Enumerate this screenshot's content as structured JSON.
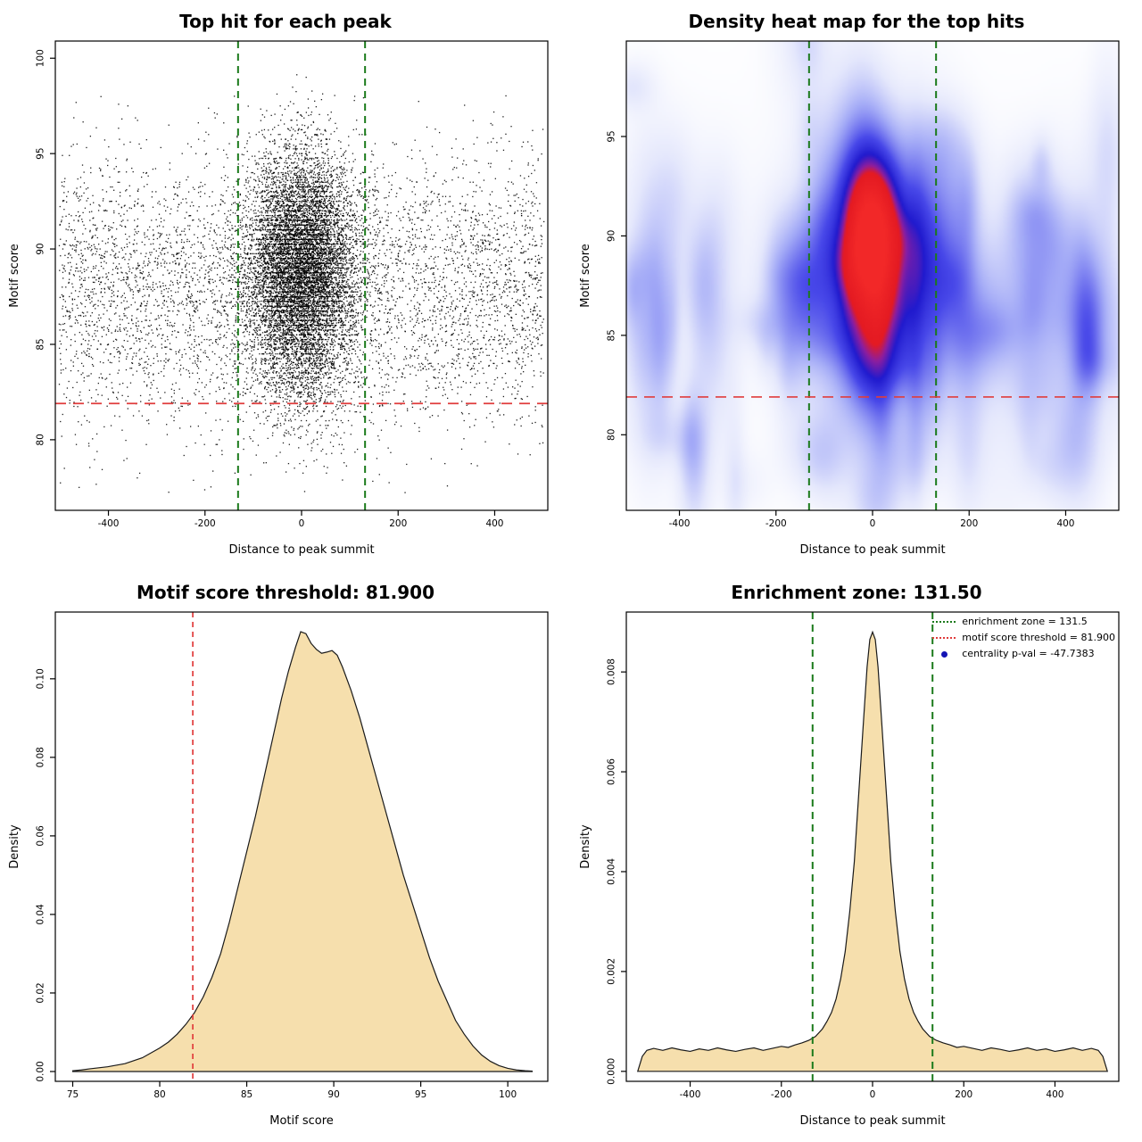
{
  "page": {
    "background": "#ffffff"
  },
  "chart_data": [
    {
      "id": "top-hits-scatter",
      "type": "scatter",
      "title": "Top hit for each peak",
      "xlabel": "Distance to peak summit",
      "ylabel": "Motif score",
      "xlim": [
        -510,
        510
      ],
      "ylim": [
        76.3,
        100.9
      ],
      "xticks": [
        -400,
        -200,
        0,
        200,
        400
      ],
      "xtick_labels": [
        "-400",
        "-200",
        "0",
        "200",
        "400"
      ],
      "yticks": [
        80,
        85,
        90,
        95,
        100
      ],
      "ytick_labels": [
        "80",
        "85",
        "90",
        "95",
        "100"
      ],
      "point_color": "#000000",
      "zone_lines_x": [
        -131.5,
        131.5
      ],
      "zone_line_color": "#1b7a1b",
      "threshold_y": 81.9,
      "threshold_color": "#e03c3c",
      "points_model": {
        "seed": 42,
        "n_center": 9800,
        "center_x_sd": 56,
        "center_y_mean": 89.3,
        "center_y_sd": 2.9,
        "center_low_tail_frac": 0.1,
        "center_low_tail_mean": 84.6,
        "center_low_tail_sd": 2.4,
        "n_background": 5200,
        "background_x_range": [
          -502,
          502
        ],
        "background_y_mean": 87.9,
        "background_y_sd": 3.6,
        "y_clip": [
          77.2,
          100.5
        ],
        "background_y_max": 98.2
      }
    },
    {
      "id": "top-hits-heatmap",
      "type": "heatmap",
      "title": "Density heat map for the top hits",
      "xlabel": "Distance to peak summit",
      "ylabel": "Motif score",
      "xlim": [
        -510,
        510
      ],
      "ylim": [
        76.2,
        99.8
      ],
      "xticks": [
        -400,
        -200,
        0,
        200,
        400
      ],
      "xtick_labels": [
        "-400",
        "-200",
        "0",
        "200",
        "400"
      ],
      "yticks": [
        80,
        85,
        90,
        95
      ],
      "ytick_labels": [
        "80",
        "85",
        "90",
        "95"
      ],
      "zone_lines_x": [
        -131.5,
        131.5
      ],
      "zone_line_color": "#1b7a1b",
      "threshold_y": 81.9,
      "threshold_color": "#e03c3c",
      "colors": {
        "low": "#ffffff",
        "mid": "#3c3ce6",
        "high": "#e61e28"
      },
      "density_model": {
        "seed": 7,
        "components": [
          {
            "amp": 1.3,
            "x0": 0,
            "sx": 30,
            "y0": 89.9,
            "sy": 2.1
          },
          {
            "amp": 0.75,
            "x0": 0,
            "sx": 60,
            "y0": 89.6,
            "sy": 3.3
          },
          {
            "amp": 0.25,
            "x0": 0,
            "sx": 95,
            "y0": 88.8,
            "sy": 4.6
          }
        ],
        "haze": {
          "base_amp": 0.05,
          "band_y": 88.3,
          "band_sy": 6,
          "blob_count": 130,
          "blob_amp": [
            0.04,
            0.15
          ],
          "blob_sx": [
            12,
            45
          ],
          "blob_sy": [
            0.8,
            3.0
          ],
          "tall_frac": 0.18,
          "tall_sy": [
            3,
            7
          ]
        }
      }
    },
    {
      "id": "motif-score-density",
      "type": "area",
      "title": "Motif score threshold: 81.900",
      "xlabel": "Motif score",
      "ylabel": "Density",
      "xlim": [
        74,
        102.3
      ],
      "ylim": [
        -0.0025,
        0.117
      ],
      "xticks": [
        75,
        80,
        85,
        90,
        95,
        100
      ],
      "xtick_labels": [
        "75",
        "80",
        "85",
        "90",
        "95",
        "100"
      ],
      "yticks": [
        0,
        0.02,
        0.04,
        0.06,
        0.08,
        0.1
      ],
      "ytick_labels": [
        "0.00",
        "0.02",
        "0.04",
        "0.06",
        "0.08",
        "0.10"
      ],
      "fill_color": "#f6dfad",
      "line_color": "#1a1a1a",
      "threshold_x": 81.9,
      "threshold_color": "#e03c3c",
      "curve": {
        "x": [
          75,
          75.5,
          76,
          77,
          78,
          79,
          80,
          80.5,
          81,
          81.5,
          82,
          82.5,
          83,
          83.5,
          84,
          84.5,
          85,
          85.5,
          86,
          86.5,
          87,
          87.4,
          87.8,
          88.1,
          88.4,
          88.7,
          89,
          89.3,
          89.6,
          89.9,
          90.2,
          90.5,
          91,
          91.5,
          92,
          92.5,
          93,
          93.5,
          94,
          94.5,
          95,
          95.5,
          96,
          96.5,
          97,
          97.5,
          98,
          98.5,
          99,
          99.5,
          100,
          100.5,
          101,
          101.4
        ],
        "y": [
          0.0002,
          0.0004,
          0.0007,
          0.0012,
          0.002,
          0.0035,
          0.006,
          0.0075,
          0.0095,
          0.012,
          0.015,
          0.019,
          0.024,
          0.03,
          0.038,
          0.047,
          0.056,
          0.065,
          0.075,
          0.085,
          0.095,
          0.102,
          0.108,
          0.112,
          0.1115,
          0.109,
          0.1075,
          0.1065,
          0.1068,
          0.1072,
          0.106,
          0.103,
          0.097,
          0.09,
          0.082,
          0.074,
          0.066,
          0.058,
          0.05,
          0.043,
          0.036,
          0.029,
          0.023,
          0.018,
          0.013,
          0.0095,
          0.0065,
          0.0042,
          0.0026,
          0.0015,
          0.0008,
          0.0004,
          0.0002,
          0.0001
        ]
      }
    },
    {
      "id": "summit-distance-density",
      "type": "area",
      "title": "Enrichment zone: 131.50",
      "xlabel": "Distance to peak summit",
      "ylabel": "Density",
      "xlim": [
        -540,
        540
      ],
      "ylim": [
        -0.0002,
        0.0092
      ],
      "xticks": [
        -400,
        -200,
        0,
        200,
        400
      ],
      "xtick_labels": [
        "-400",
        "-200",
        "0",
        "200",
        "400"
      ],
      "yticks": [
        0,
        0.002,
        0.004,
        0.006,
        0.008
      ],
      "ytick_labels": [
        "0.000",
        "0.002",
        "0.004",
        "0.006",
        "0.008"
      ],
      "fill_color": "#f6dfad",
      "line_color": "#1a1a1a",
      "zone_lines_x": [
        -131.5,
        131.5
      ],
      "zone_line_color": "#1b7a1b",
      "curve": {
        "x": [
          -515,
          -510,
          -505,
          -495,
          -480,
          -460,
          -440,
          -420,
          -400,
          -380,
          -360,
          -340,
          -320,
          -300,
          -280,
          -260,
          -240,
          -220,
          -200,
          -185,
          -170,
          -155,
          -140,
          -125,
          -110,
          -100,
          -90,
          -80,
          -70,
          -60,
          -50,
          -40,
          -30,
          -20,
          -12,
          -6,
          0,
          6,
          12,
          20,
          30,
          40,
          50,
          60,
          70,
          80,
          90,
          100,
          110,
          125,
          140,
          155,
          170,
          185,
          200,
          220,
          240,
          260,
          280,
          300,
          320,
          340,
          360,
          380,
          400,
          420,
          440,
          460,
          480,
          495,
          505,
          510,
          515
        ],
        "y": [
          0,
          0.00015,
          0.0003,
          0.00042,
          0.00046,
          0.00042,
          0.00047,
          0.00043,
          0.0004,
          0.00045,
          0.00042,
          0.00047,
          0.00043,
          0.0004,
          0.00044,
          0.00047,
          0.00042,
          0.00046,
          0.0005,
          0.00048,
          0.00053,
          0.00057,
          0.00062,
          0.0007,
          0.00085,
          0.001,
          0.00118,
          0.00145,
          0.00185,
          0.0024,
          0.0032,
          0.0042,
          0.0056,
          0.007,
          0.0081,
          0.00865,
          0.0088,
          0.00865,
          0.0081,
          0.007,
          0.0056,
          0.0042,
          0.0032,
          0.0024,
          0.00185,
          0.00145,
          0.00118,
          0.001,
          0.00085,
          0.0007,
          0.00062,
          0.00057,
          0.00053,
          0.00048,
          0.0005,
          0.00046,
          0.00042,
          0.00047,
          0.00044,
          0.0004,
          0.00043,
          0.00047,
          0.00042,
          0.00045,
          0.0004,
          0.00043,
          0.00047,
          0.00042,
          0.00046,
          0.00042,
          0.0003,
          0.00015,
          0
        ]
      },
      "legend": [
        {
          "label": "enrichment zone = 131.5",
          "color": "#1b7a1b",
          "marker": "dotted-line"
        },
        {
          "label": "motif score threshold = 81.900",
          "color": "#e03c3c",
          "marker": "dotted-line"
        },
        {
          "label": "centrality p-val = -47.7383",
          "color": "#1414b4",
          "marker": "point"
        }
      ]
    }
  ]
}
